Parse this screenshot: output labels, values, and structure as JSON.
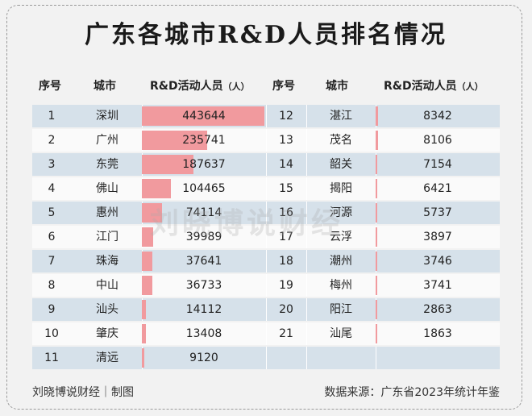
{
  "title": "广东各城市R&D人员排名情况",
  "headers": {
    "rank": "序号",
    "city": "城市",
    "value": "R&D活动人员",
    "unit": "（人）"
  },
  "watermark": "刘晓博说财经",
  "footer": {
    "left": "刘晓博说财经｜制图",
    "right": "数据来源：广东省2023年统计年鉴"
  },
  "colors": {
    "bar": "#f19a9e",
    "row_alt": "#d6e1ea"
  },
  "chart_data": {
    "type": "table",
    "title": "广东各城市R&D人员排名情况",
    "columns": [
      "序号",
      "城市",
      "R&D活动人员（人）"
    ],
    "rows": [
      {
        "rank": "1",
        "city": "深圳",
        "value": 443644
      },
      {
        "rank": "2",
        "city": "广州",
        "value": 235741
      },
      {
        "rank": "3",
        "city": "东莞",
        "value": 187637
      },
      {
        "rank": "4",
        "city": "佛山",
        "value": 104465
      },
      {
        "rank": "5",
        "city": "惠州",
        "value": 74114
      },
      {
        "rank": "6",
        "city": "江门",
        "value": 39989
      },
      {
        "rank": "7",
        "city": "珠海",
        "value": 37641
      },
      {
        "rank": "8",
        "city": "中山",
        "value": 36733
      },
      {
        "rank": "9",
        "city": "汕头",
        "value": 14112
      },
      {
        "rank": "10",
        "city": "肇庆",
        "value": 13408
      },
      {
        "rank": "11",
        "city": "清远",
        "value": 9120
      },
      {
        "rank": "12",
        "city": "湛江",
        "value": 8342
      },
      {
        "rank": "13",
        "city": "茂名",
        "value": 8106
      },
      {
        "rank": "14",
        "city": "韶关",
        "value": 7154
      },
      {
        "rank": "15",
        "city": "揭阳",
        "value": 6421
      },
      {
        "rank": "16",
        "city": "河源",
        "value": 5737
      },
      {
        "rank": "17",
        "city": "云浮",
        "value": 3897
      },
      {
        "rank": "18",
        "city": "潮州",
        "value": 3746
      },
      {
        "rank": "19",
        "city": "梅州",
        "value": 3741
      },
      {
        "rank": "20",
        "city": "阳江",
        "value": 2863
      },
      {
        "rank": "21",
        "city": "汕尾",
        "value": 1863
      }
    ]
  }
}
